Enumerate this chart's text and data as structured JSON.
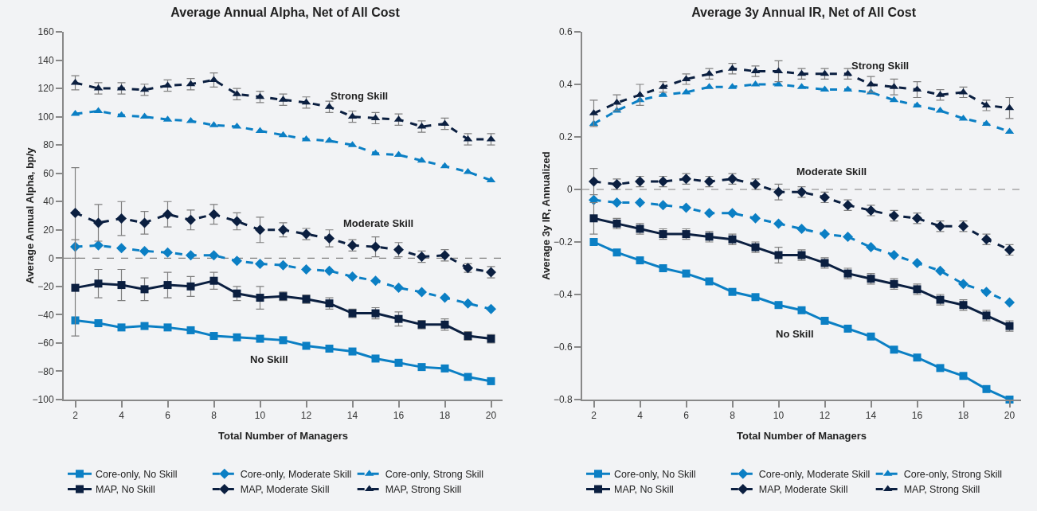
{
  "chart_data": [
    {
      "type": "line",
      "title": "Average Annual Alpha, Net of All Cost",
      "xlabel": "Total Number of Managers",
      "ylabel": "Average Annual Alpha, bp/y",
      "x": [
        2,
        3,
        4,
        5,
        6,
        7,
        8,
        9,
        10,
        11,
        12,
        13,
        14,
        15,
        16,
        17,
        18,
        19,
        20
      ],
      "xlim": [
        1.5,
        20.5
      ],
      "xticks": [
        2,
        4,
        6,
        8,
        10,
        12,
        14,
        16,
        18,
        20
      ],
      "ylim": [
        -100,
        160
      ],
      "yticks": [
        -100,
        -80,
        -60,
        -40,
        -20,
        0,
        20,
        40,
        60,
        80,
        100,
        120,
        140,
        160
      ],
      "grid": false,
      "legend": "bottom",
      "ref_lines": [
        {
          "axis": "y",
          "value": 0,
          "color": "#808080",
          "line_style": "dashed"
        }
      ],
      "annotations": [
        "Strong Skill",
        "Moderate Skill",
        "No Skill"
      ],
      "series": [
        {
          "name": "Core-only, No Skill",
          "color": "#0b7fc4",
          "marker": "square",
          "line_style": "solid",
          "values": [
            -44,
            -46,
            -49,
            -48,
            -49,
            -51,
            -55,
            -56,
            -57,
            -58,
            -62,
            -64,
            -66,
            -71,
            -74,
            -77,
            -78,
            -84,
            -87
          ]
        },
        {
          "name": "Core-only, Moderate Skill",
          "color": "#0b7fc4",
          "marker": "diamond",
          "line_style": "dashed",
          "values": [
            8,
            9,
            7,
            5,
            4,
            2,
            2,
            -2,
            -4,
            -5,
            -8,
            -9,
            -13,
            -16,
            -21,
            -24,
            -28,
            -32,
            -36
          ]
        },
        {
          "name": "Core-only, Strong Skill",
          "color": "#0b7fc4",
          "marker": "triangle",
          "line_style": "dashed",
          "values": [
            102,
            104,
            101,
            100,
            98,
            97,
            94,
            93,
            90,
            87,
            84,
            83,
            80,
            74,
            73,
            69,
            65,
            61,
            55
          ]
        },
        {
          "name": "MAP, No Skill",
          "color": "#0b1f40",
          "marker": "square",
          "line_style": "solid",
          "values": [
            -21,
            -18,
            -19,
            -22,
            -19,
            -20,
            -16,
            -25,
            -28,
            -27,
            -29,
            -32,
            -39,
            -39,
            -43,
            -47,
            -47,
            -55,
            -57
          ],
          "errors": [
            34,
            10,
            11,
            8,
            9,
            7,
            6,
            5,
            8,
            3,
            3,
            4,
            3,
            4,
            5,
            3,
            4,
            3,
            3
          ]
        },
        {
          "name": "MAP, Moderate Skill",
          "color": "#0b1f40",
          "marker": "diamond",
          "line_style": "dashed",
          "values": [
            32,
            25,
            28,
            25,
            31,
            27,
            31,
            26,
            20,
            20,
            17,
            14,
            9,
            8,
            6,
            1,
            2,
            -7,
            -10
          ],
          "errors": [
            32,
            13,
            12,
            8,
            9,
            7,
            7,
            6,
            9,
            5,
            4,
            6,
            4,
            7,
            5,
            4,
            4,
            3,
            4
          ]
        },
        {
          "name": "MAP, Strong Skill",
          "color": "#0b1f40",
          "marker": "triangle",
          "line_style": "dashed",
          "values": [
            124,
            120,
            120,
            119,
            122,
            123,
            126,
            116,
            114,
            112,
            110,
            107,
            100,
            99,
            98,
            93,
            95,
            84,
            84
          ],
          "errors": [
            5,
            4,
            4,
            4,
            4,
            4,
            5,
            4,
            4,
            4,
            4,
            4,
            4,
            4,
            4,
            4,
            4,
            4,
            4
          ]
        }
      ]
    },
    {
      "type": "line",
      "title": "Average 3y Annual IR, Net of All Cost",
      "xlabel": "Total Number of Managers",
      "ylabel": "Average 3y IR, Annualized",
      "x": [
        2,
        3,
        4,
        5,
        6,
        7,
        8,
        9,
        10,
        11,
        12,
        13,
        14,
        15,
        16,
        17,
        18,
        19,
        20
      ],
      "xlim": [
        1.5,
        20.5
      ],
      "xticks": [
        2,
        4,
        6,
        8,
        10,
        12,
        14,
        16,
        18,
        20
      ],
      "ylim": [
        -0.8,
        0.6
      ],
      "yticks": [
        -0.8,
        -0.6,
        -0.4,
        -0.2,
        0,
        0.2,
        0.4,
        0.6
      ],
      "grid": false,
      "legend": "bottom",
      "ref_lines": [
        {
          "axis": "y",
          "value": 0,
          "color": "#808080",
          "line_style": "dashed"
        }
      ],
      "annotations": [
        "Strong Skill",
        "Moderate Skill",
        "No Skill"
      ],
      "series": [
        {
          "name": "Core-only, No Skill",
          "color": "#0b7fc4",
          "marker": "square",
          "line_style": "solid",
          "values": [
            -0.2,
            -0.24,
            -0.27,
            -0.3,
            -0.32,
            -0.35,
            -0.39,
            -0.41,
            -0.44,
            -0.46,
            -0.5,
            -0.53,
            -0.56,
            -0.61,
            -0.64,
            -0.68,
            -0.71,
            -0.76,
            -0.8
          ]
        },
        {
          "name": "Core-only, Moderate Skill",
          "color": "#0b7fc4",
          "marker": "diamond",
          "line_style": "dashed",
          "values": [
            -0.04,
            -0.05,
            -0.05,
            -0.06,
            -0.07,
            -0.09,
            -0.09,
            -0.11,
            -0.13,
            -0.15,
            -0.17,
            -0.18,
            -0.22,
            -0.25,
            -0.28,
            -0.31,
            -0.36,
            -0.39,
            -0.43
          ]
        },
        {
          "name": "Core-only, Strong Skill",
          "color": "#0b7fc4",
          "marker": "triangle",
          "line_style": "dashed",
          "values": [
            0.25,
            0.3,
            0.34,
            0.36,
            0.37,
            0.39,
            0.39,
            0.4,
            0.4,
            0.39,
            0.38,
            0.38,
            0.37,
            0.34,
            0.32,
            0.3,
            0.27,
            0.25,
            0.22
          ]
        },
        {
          "name": "MAP, No Skill",
          "color": "#0b1f40",
          "marker": "square",
          "line_style": "solid",
          "values": [
            -0.11,
            -0.13,
            -0.15,
            -0.17,
            -0.17,
            -0.18,
            -0.19,
            -0.22,
            -0.25,
            -0.25,
            -0.28,
            -0.32,
            -0.34,
            -0.36,
            -0.38,
            -0.42,
            -0.44,
            -0.48,
            -0.52
          ],
          "errors": [
            0.06,
            0.02,
            0.02,
            0.02,
            0.02,
            0.02,
            0.02,
            0.02,
            0.03,
            0.02,
            0.02,
            0.02,
            0.02,
            0.02,
            0.02,
            0.02,
            0.02,
            0.02,
            0.02
          ]
        },
        {
          "name": "MAP, Moderate Skill",
          "color": "#0b1f40",
          "marker": "diamond",
          "line_style": "dashed",
          "values": [
            0.03,
            0.02,
            0.03,
            0.03,
            0.04,
            0.03,
            0.04,
            0.02,
            -0.01,
            -0.01,
            -0.03,
            -0.06,
            -0.08,
            -0.1,
            -0.11,
            -0.14,
            -0.14,
            -0.19,
            -0.23
          ],
          "errors": [
            0.05,
            0.02,
            0.02,
            0.02,
            0.02,
            0.02,
            0.02,
            0.02,
            0.03,
            0.02,
            0.02,
            0.02,
            0.02,
            0.02,
            0.02,
            0.02,
            0.02,
            0.02,
            0.02
          ]
        },
        {
          "name": "MAP, Strong Skill",
          "color": "#0b1f40",
          "marker": "triangle",
          "line_style": "dashed",
          "values": [
            0.29,
            0.33,
            0.36,
            0.39,
            0.42,
            0.44,
            0.46,
            0.45,
            0.45,
            0.44,
            0.44,
            0.44,
            0.4,
            0.39,
            0.38,
            0.36,
            0.37,
            0.32,
            0.31
          ],
          "errors": [
            0.05,
            0.03,
            0.04,
            0.02,
            0.02,
            0.02,
            0.02,
            0.02,
            0.04,
            0.02,
            0.02,
            0.02,
            0.03,
            0.03,
            0.03,
            0.02,
            0.02,
            0.02,
            0.04
          ]
        }
      ]
    }
  ]
}
